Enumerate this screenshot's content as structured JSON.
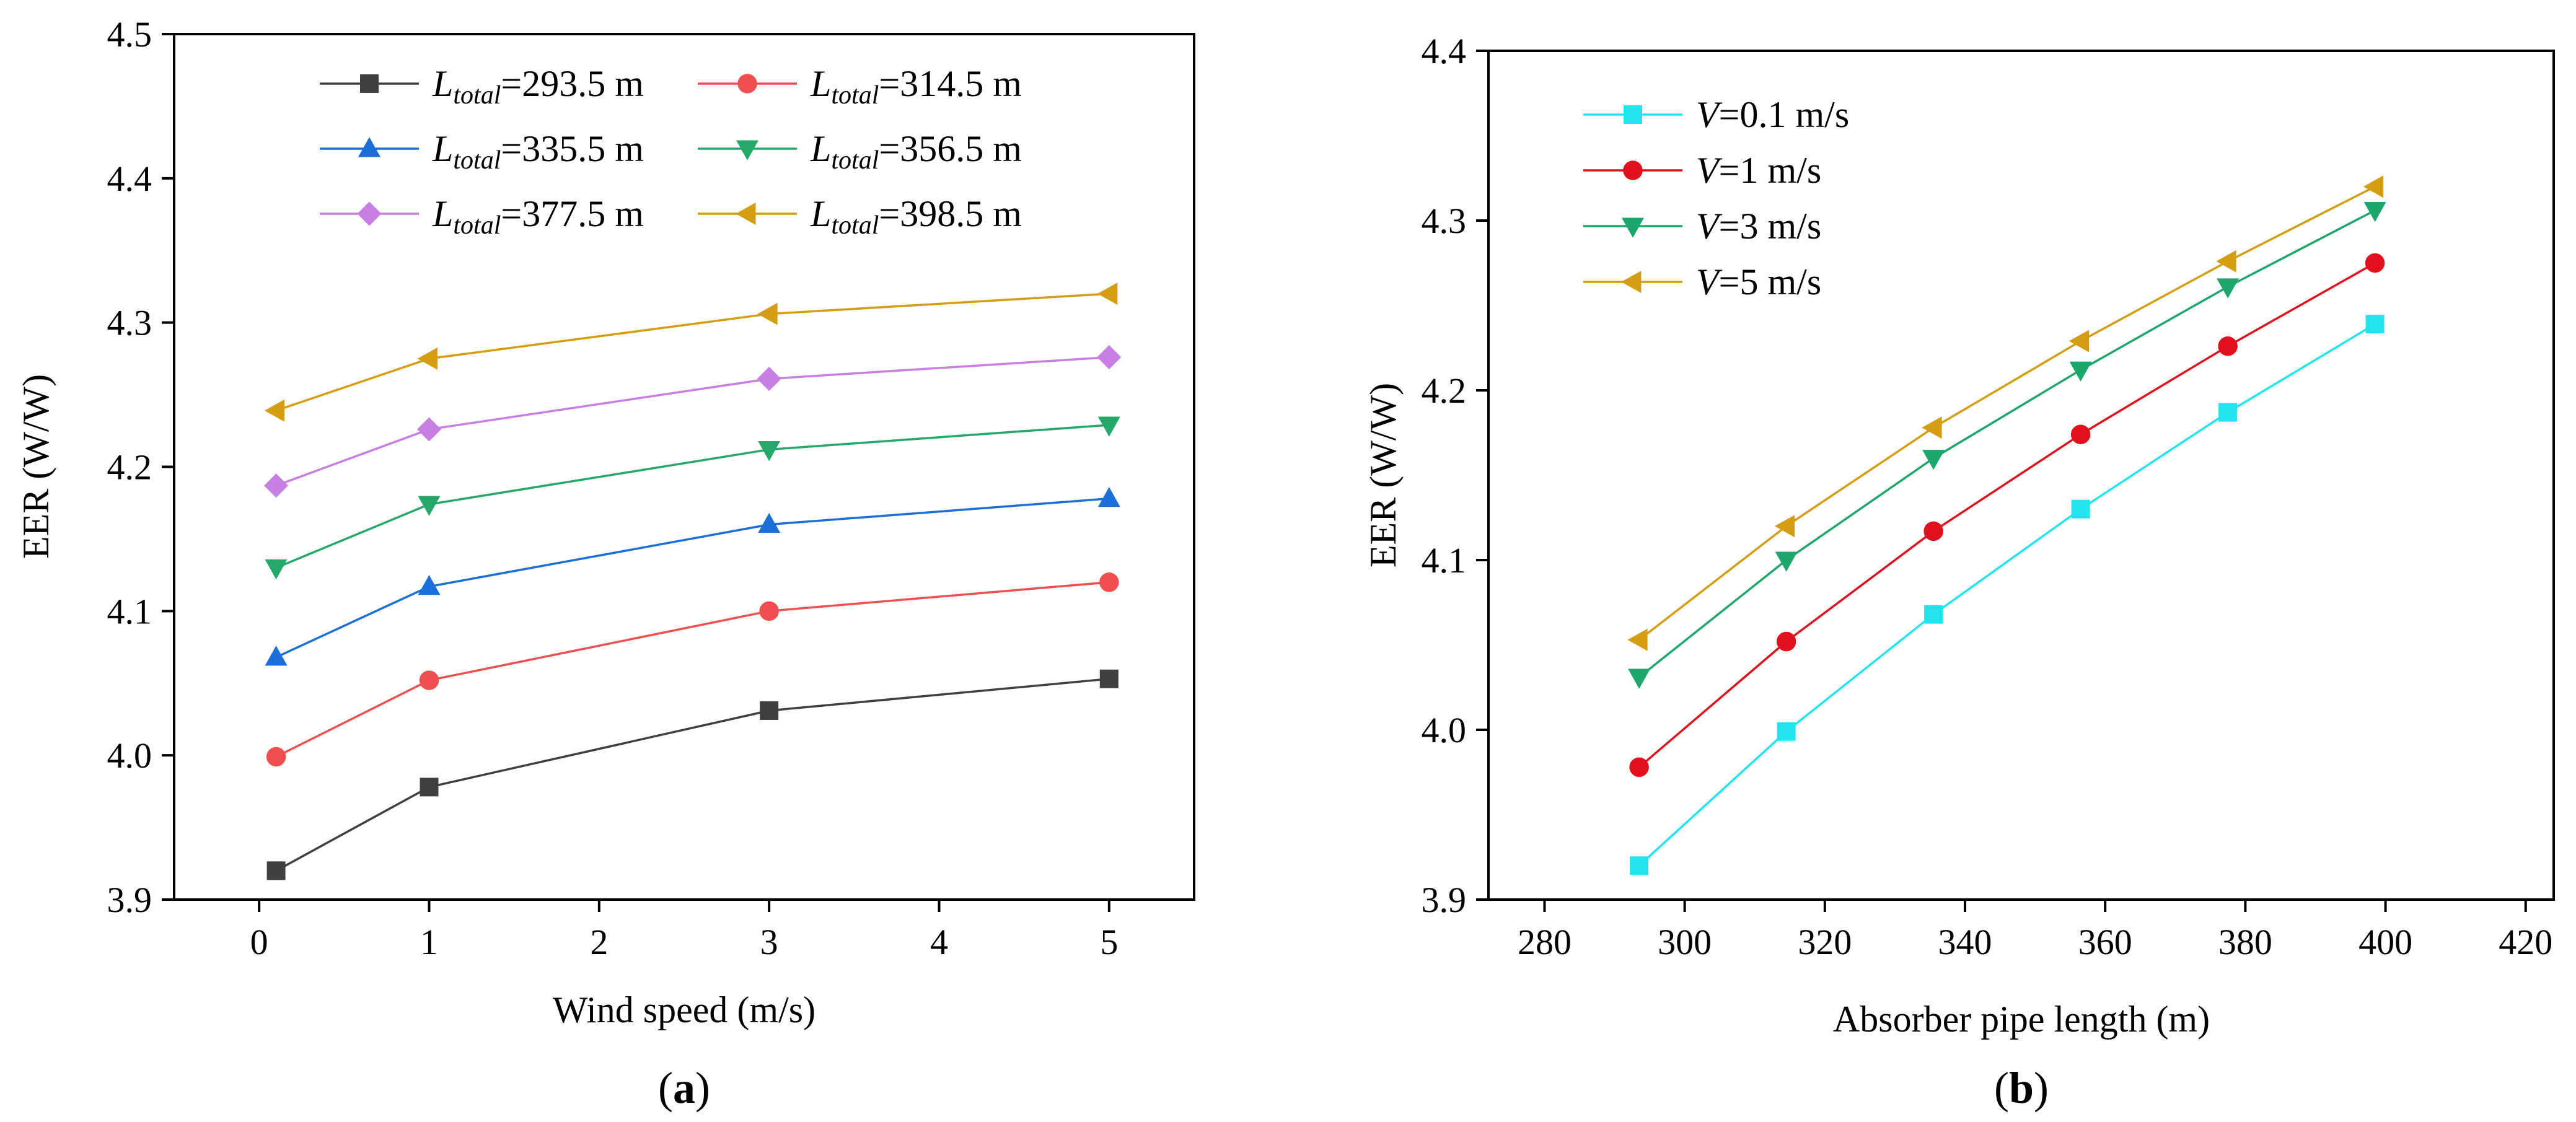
{
  "chart_data": [
    {
      "panel": "a",
      "panel_label": {
        "open": "(",
        "letter": "a",
        "close": ")"
      },
      "type": "line",
      "xlabel": "Wind speed (m/s)",
      "ylabel": "EER (W/W)",
      "xlim": [
        -0.5,
        5.5
      ],
      "ylim": [
        3.9,
        4.5
      ],
      "xticks": [
        0,
        1,
        2,
        3,
        4,
        5
      ],
      "xtick_labels": [
        "0",
        "1",
        "2",
        "3",
        "4",
        "5"
      ],
      "yticks": [
        3.9,
        4.0,
        4.1,
        4.2,
        4.3,
        4.4,
        4.5
      ],
      "ytick_labels": [
        "3.9",
        "4.0",
        "4.1",
        "4.2",
        "4.3",
        "4.4",
        "4.5"
      ],
      "legend_position": "top",
      "x": [
        0.1,
        1,
        3,
        5
      ],
      "series": [
        {
          "name": "L_total=293.5 m",
          "var": "L",
          "sub": "total",
          "rest": "=293.5 m",
          "marker": "square",
          "color": "#404040",
          "values": [
            3.92,
            3.978,
            4.031,
            4.053
          ]
        },
        {
          "name": "L_total=314.5 m",
          "var": "L",
          "sub": "total",
          "rest": "=314.5 m",
          "marker": "circle",
          "color": "#f04f4f",
          "values": [
            3.999,
            4.052,
            4.1,
            4.12
          ]
        },
        {
          "name": "L_total=335.5 m",
          "var": "L",
          "sub": "total",
          "rest": "=335.5 m",
          "marker": "triangle-up",
          "color": "#1c6fd9",
          "values": [
            4.068,
            4.117,
            4.16,
            4.178
          ]
        },
        {
          "name": "L_total=356.5 m",
          "var": "L",
          "sub": "total",
          "rest": "=356.5 m",
          "marker": "triangle-down",
          "color": "#26a86a",
          "values": [
            4.13,
            4.174,
            4.212,
            4.229
          ]
        },
        {
          "name": "L_total=377.5 m",
          "var": "L",
          "sub": "total",
          "rest": "=377.5 m",
          "marker": "diamond",
          "color": "#c77fe3",
          "values": [
            4.187,
            4.226,
            4.261,
            4.276
          ]
        },
        {
          "name": "L_total=398.5 m",
          "var": "L",
          "sub": "total",
          "rest": "=398.5 m",
          "marker": "triangle-left",
          "color": "#d59e12",
          "values": [
            4.239,
            4.275,
            4.306,
            4.32
          ]
        }
      ]
    },
    {
      "panel": "b",
      "panel_label": {
        "open": "(",
        "letter": "b",
        "close": ")"
      },
      "type": "line",
      "xlabel": "Absorber pipe length (m)",
      "ylabel": "EER (W/W)",
      "xlim": [
        272,
        424
      ],
      "ylim": [
        3.9,
        4.4
      ],
      "xticks": [
        280,
        300,
        320,
        340,
        360,
        380,
        400,
        420
      ],
      "xtick_labels": [
        "280",
        "300",
        "320",
        "340",
        "360",
        "380",
        "400",
        "420"
      ],
      "yticks": [
        3.9,
        4.0,
        4.1,
        4.2,
        4.3,
        4.4
      ],
      "ytick_labels": [
        "3.9",
        "4.0",
        "4.1",
        "4.2",
        "4.3",
        "4.4"
      ],
      "legend_position": "top-left",
      "x": [
        293.5,
        314.5,
        335.5,
        356.5,
        377.5,
        398.5
      ],
      "series": [
        {
          "name": "V=0.1 m/s",
          "var": "V",
          "sub": "",
          "rest": "=0.1 m/s",
          "marker": "square",
          "color": "#22e4ef",
          "values": [
            3.92,
            3.999,
            4.068,
            4.13,
            4.187,
            4.239
          ]
        },
        {
          "name": "V=1 m/s",
          "var": "V",
          "sub": "",
          "rest": "=1 m/s",
          "marker": "circle",
          "color": "#e0101c",
          "values": [
            3.978,
            4.052,
            4.117,
            4.174,
            4.226,
            4.275
          ]
        },
        {
          "name": "V=3 m/s",
          "var": "V",
          "sub": "",
          "rest": "=3 m/s",
          "marker": "triangle-down",
          "color": "#1ea76c",
          "values": [
            4.031,
            4.1,
            4.16,
            4.212,
            4.261,
            4.306
          ]
        },
        {
          "name": "V=5 m/s",
          "var": "V",
          "sub": "",
          "rest": "=5 m/s",
          "marker": "triangle-left",
          "color": "#d59e12",
          "values": [
            4.053,
            4.12,
            4.178,
            4.229,
            4.276,
            4.32
          ]
        }
      ]
    }
  ]
}
